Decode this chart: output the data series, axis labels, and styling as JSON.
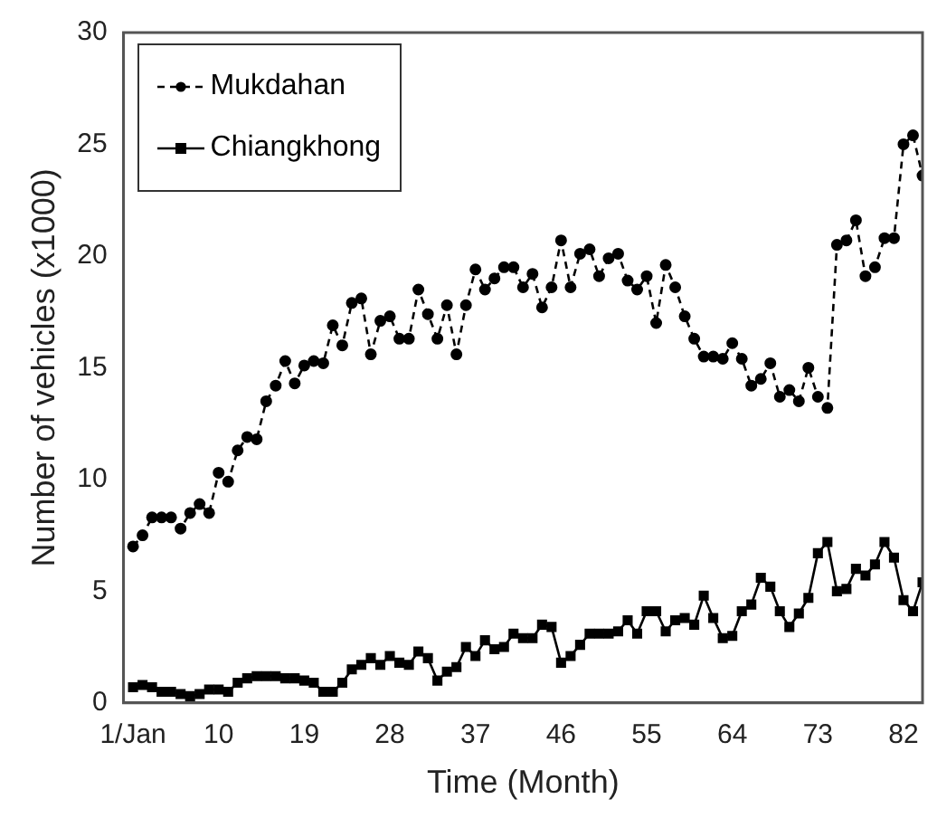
{
  "chart_data": {
    "type": "line",
    "xlabel": "Time (Month)",
    "ylabel": "Number of vehicles (x1000)",
    "x": [
      1,
      2,
      3,
      4,
      5,
      6,
      7,
      8,
      9,
      10,
      11,
      12,
      13,
      14,
      15,
      16,
      17,
      18,
      19,
      20,
      21,
      22,
      23,
      24,
      25,
      26,
      27,
      28,
      29,
      30,
      31,
      32,
      33,
      34,
      35,
      36,
      37,
      38,
      39,
      40,
      41,
      42,
      43,
      44,
      45,
      46,
      47,
      48,
      49,
      50,
      51,
      52,
      53,
      54,
      55,
      56,
      57,
      58,
      59,
      60,
      61,
      62,
      63,
      64,
      65,
      66,
      67,
      68,
      69,
      70,
      71,
      72,
      73,
      74,
      75,
      76,
      77,
      78,
      79,
      80,
      81,
      82,
      83,
      84
    ],
    "series": [
      {
        "name": "Mukdahan",
        "color": "#000000",
        "line_style": "dashed",
        "marker": "circle",
        "values": [
          7.0,
          7.5,
          8.3,
          8.3,
          8.3,
          7.8,
          8.5,
          8.9,
          8.5,
          10.3,
          9.9,
          11.3,
          11.9,
          11.8,
          13.5,
          14.2,
          15.3,
          14.3,
          15.1,
          15.3,
          15.2,
          16.9,
          16.0,
          17.9,
          18.1,
          15.6,
          17.1,
          17.3,
          16.3,
          16.3,
          18.5,
          17.4,
          16.3,
          17.8,
          15.6,
          17.8,
          19.4,
          18.5,
          19.0,
          19.5,
          19.5,
          18.6,
          19.2,
          17.7,
          18.6,
          20.7,
          18.6,
          20.1,
          20.3,
          19.1,
          19.9,
          20.1,
          18.9,
          18.5,
          19.1,
          17.0,
          19.6,
          18.6,
          17.3,
          16.3,
          15.5,
          15.5,
          15.4,
          16.1,
          15.4,
          14.2,
          14.5,
          15.2,
          13.7,
          14.0,
          13.5,
          15.0,
          13.7,
          13.2,
          20.5,
          20.7,
          21.6,
          19.1,
          19.5,
          20.8,
          20.8,
          25.0,
          25.4,
          23.6
        ]
      },
      {
        "name": "Chiangkhong",
        "color": "#000000",
        "line_style": "solid",
        "marker": "square",
        "values": [
          0.7,
          0.8,
          0.7,
          0.5,
          0.5,
          0.4,
          0.3,
          0.4,
          0.6,
          0.6,
          0.5,
          0.9,
          1.1,
          1.2,
          1.2,
          1.2,
          1.1,
          1.1,
          1.0,
          0.9,
          0.5,
          0.5,
          0.9,
          1.5,
          1.7,
          2.0,
          1.7,
          2.1,
          1.8,
          1.7,
          2.3,
          2.0,
          1.0,
          1.4,
          1.6,
          2.5,
          2.1,
          2.8,
          2.4,
          2.5,
          3.1,
          2.9,
          2.9,
          3.5,
          3.4,
          1.8,
          2.1,
          2.6,
          3.1,
          3.1,
          3.1,
          3.2,
          3.7,
          3.1,
          4.1,
          4.1,
          3.2,
          3.7,
          3.8,
          3.5,
          4.8,
          3.8,
          2.9,
          3.0,
          4.1,
          4.4,
          5.6,
          5.2,
          4.1,
          3.4,
          4.0,
          4.7,
          6.7,
          7.2,
          5.0,
          5.1,
          6.0,
          5.7,
          6.2,
          7.2,
          6.5,
          4.6,
          4.1,
          5.4
        ]
      }
    ],
    "xlim": [
      0,
      84
    ],
    "xticks": [
      {
        "value": 1,
        "label": "1/Jan"
      },
      10,
      19,
      28,
      37,
      46,
      55,
      64,
      73,
      82
    ],
    "ylim": [
      0,
      30
    ],
    "yticks": [
      0,
      5,
      10,
      15,
      20,
      25,
      30
    ],
    "grid": false,
    "legend": "top left"
  }
}
